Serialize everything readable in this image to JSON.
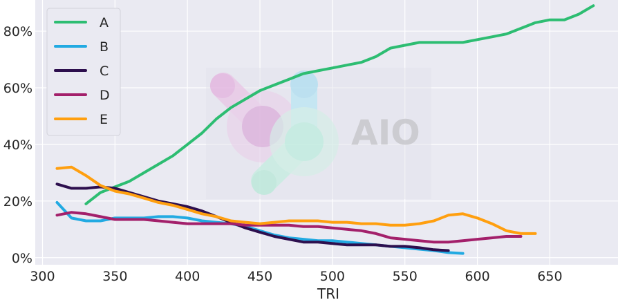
{
  "chart_data": {
    "type": "line",
    "title": "",
    "xlabel": "TRI",
    "ylabel": "",
    "xlim": [
      295,
      697
    ],
    "ylim": [
      -0.025,
      0.91
    ],
    "xticks": [
      300,
      350,
      400,
      450,
      500,
      550,
      600,
      650
    ],
    "xtick_labels": [
      "300",
      "350",
      "400",
      "450",
      "500",
      "550",
      "600",
      "650"
    ],
    "yticks": [
      0,
      0.2,
      0.4,
      0.6,
      0.8
    ],
    "ytick_labels": [
      "0%",
      "20%",
      "40%",
      "60%",
      "80%"
    ],
    "grid": true,
    "legend_position": "top-left",
    "series": [
      {
        "name": "A",
        "color": "#2dbd72",
        "x": [
          330,
          340,
          350,
          360,
          370,
          380,
          390,
          400,
          410,
          420,
          430,
          440,
          450,
          460,
          470,
          480,
          490,
          500,
          510,
          520,
          530,
          540,
          550,
          560,
          570,
          580,
          590,
          600,
          610,
          620,
          630,
          640,
          650,
          660,
          670,
          680
        ],
        "y": [
          0.19,
          0.23,
          0.25,
          0.27,
          0.3,
          0.33,
          0.36,
          0.4,
          0.44,
          0.49,
          0.53,
          0.56,
          0.59,
          0.61,
          0.63,
          0.65,
          0.66,
          0.67,
          0.68,
          0.69,
          0.71,
          0.74,
          0.75,
          0.76,
          0.76,
          0.76,
          0.76,
          0.77,
          0.78,
          0.79,
          0.81,
          0.83,
          0.84,
          0.84,
          0.86,
          0.89
        ]
      },
      {
        "name": "B",
        "color": "#22aae2",
        "x": [
          310,
          320,
          330,
          340,
          350,
          360,
          370,
          380,
          390,
          400,
          410,
          420,
          430,
          440,
          450,
          460,
          470,
          480,
          490,
          500,
          510,
          520,
          530,
          540,
          550,
          560,
          570,
          580,
          590
        ],
        "y": [
          0.195,
          0.14,
          0.13,
          0.13,
          0.14,
          0.14,
          0.14,
          0.145,
          0.145,
          0.14,
          0.13,
          0.125,
          0.12,
          0.11,
          0.095,
          0.08,
          0.07,
          0.065,
          0.06,
          0.06,
          0.055,
          0.05,
          0.045,
          0.04,
          0.035,
          0.03,
          0.025,
          0.018,
          0.015
        ]
      },
      {
        "name": "C",
        "color": "#2d0f4e",
        "x": [
          310,
          320,
          330,
          340,
          350,
          360,
          370,
          380,
          390,
          400,
          410,
          420,
          430,
          440,
          450,
          460,
          470,
          480,
          490,
          500,
          510,
          520,
          530,
          540,
          550,
          560,
          570,
          580
        ],
        "y": [
          0.26,
          0.245,
          0.245,
          0.25,
          0.245,
          0.23,
          0.215,
          0.2,
          0.19,
          0.18,
          0.165,
          0.145,
          0.125,
          0.105,
          0.09,
          0.075,
          0.065,
          0.055,
          0.055,
          0.05,
          0.045,
          0.045,
          0.045,
          0.04,
          0.04,
          0.035,
          0.028,
          0.025
        ]
      },
      {
        "name": "D",
        "color": "#a3206b",
        "x": [
          310,
          320,
          330,
          340,
          350,
          360,
          370,
          380,
          390,
          400,
          410,
          420,
          430,
          440,
          450,
          460,
          470,
          480,
          490,
          500,
          510,
          520,
          530,
          540,
          550,
          560,
          570,
          580,
          590,
          600,
          610,
          620,
          630
        ],
        "y": [
          0.15,
          0.16,
          0.155,
          0.145,
          0.135,
          0.135,
          0.135,
          0.13,
          0.125,
          0.12,
          0.12,
          0.12,
          0.12,
          0.115,
          0.115,
          0.115,
          0.115,
          0.11,
          0.11,
          0.105,
          0.1,
          0.095,
          0.085,
          0.07,
          0.065,
          0.06,
          0.055,
          0.055,
          0.06,
          0.065,
          0.07,
          0.075,
          0.075
        ]
      },
      {
        "name": "E",
        "color": "#ff9f0f",
        "x": [
          310,
          320,
          330,
          340,
          350,
          360,
          370,
          380,
          390,
          400,
          410,
          420,
          430,
          440,
          450,
          460,
          470,
          480,
          490,
          500,
          510,
          520,
          530,
          540,
          550,
          560,
          570,
          580,
          590,
          600,
          610,
          620,
          630,
          640
        ],
        "y": [
          0.315,
          0.32,
          0.29,
          0.255,
          0.235,
          0.225,
          0.21,
          0.195,
          0.185,
          0.17,
          0.155,
          0.145,
          0.13,
          0.125,
          0.12,
          0.125,
          0.13,
          0.13,
          0.13,
          0.125,
          0.125,
          0.12,
          0.12,
          0.115,
          0.115,
          0.12,
          0.13,
          0.15,
          0.155,
          0.14,
          0.12,
          0.095,
          0.085,
          0.085
        ]
      }
    ]
  }
}
